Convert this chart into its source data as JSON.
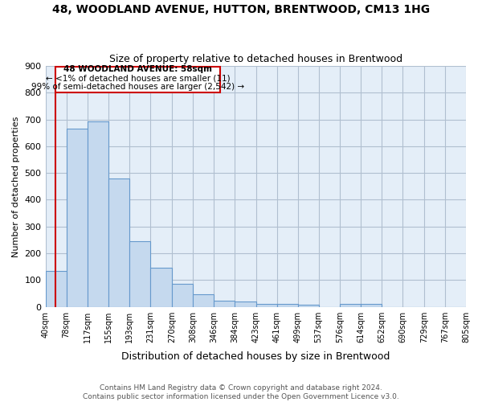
{
  "title": "48, WOODLAND AVENUE, HUTTON, BRENTWOOD, CM13 1HG",
  "subtitle": "Size of property relative to detached houses in Brentwood",
  "xlabel": "Distribution of detached houses by size in Brentwood",
  "ylabel": "Number of detached properties",
  "bar_color": "#c5d9ee",
  "bar_edge_color": "#6699cc",
  "plot_bg_color": "#e4eef8",
  "background_color": "#ffffff",
  "grid_color": "#b0bfd0",
  "annotation_line_color": "#cc0000",
  "bin_edges": [
    40,
    78,
    117,
    155,
    193,
    231,
    270,
    308,
    346,
    384,
    423,
    461,
    499,
    537,
    576,
    614,
    652,
    690,
    729,
    767,
    805
  ],
  "bar_heights": [
    135,
    667,
    693,
    480,
    245,
    145,
    85,
    47,
    22,
    20,
    10,
    10,
    8,
    0,
    10,
    10,
    0,
    0,
    0,
    0
  ],
  "annotation_text_line1": "48 WOODLAND AVENUE: 58sqm",
  "annotation_text_line2": "← <1% of detached houses are smaller (11)",
  "annotation_text_line3": "99% of semi-detached houses are larger (2,542) →",
  "property_size": 58,
  "ylim": [
    0,
    900
  ],
  "yticks": [
    0,
    100,
    200,
    300,
    400,
    500,
    600,
    700,
    800,
    900
  ],
  "footer_line1": "Contains HM Land Registry data © Crown copyright and database right 2024.",
  "footer_line2": "Contains public sector information licensed under the Open Government Licence v3.0."
}
